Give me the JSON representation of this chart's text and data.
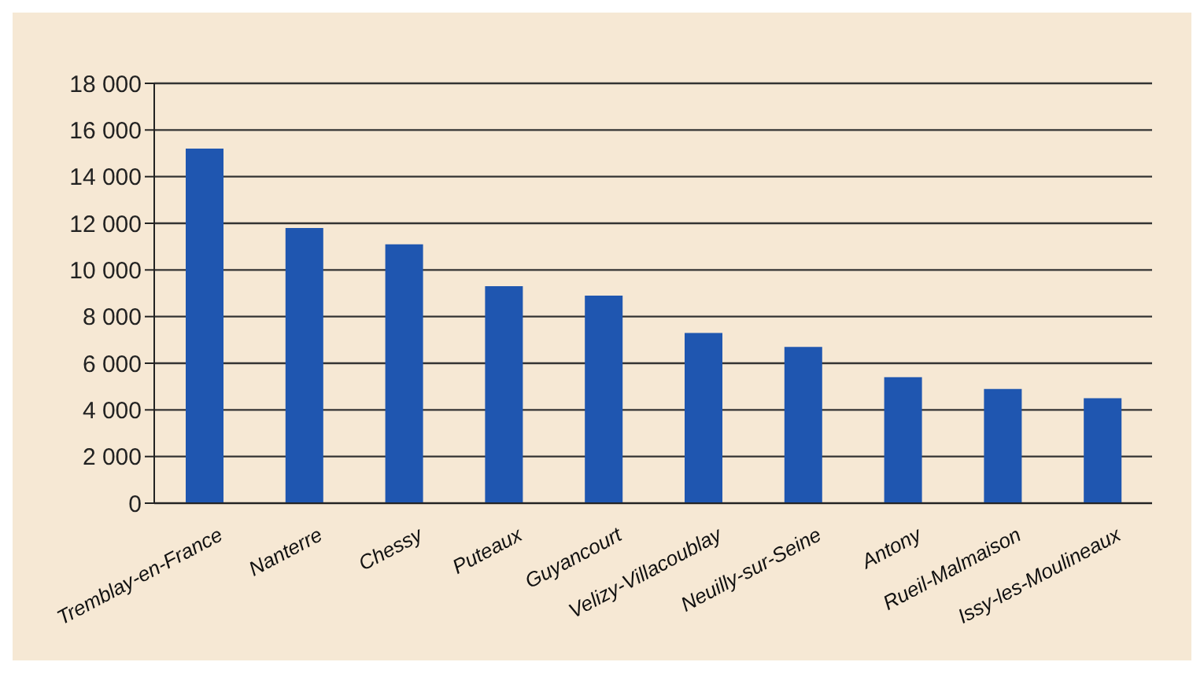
{
  "chart_data": {
    "type": "bar",
    "categories": [
      "Tremblay-en-France",
      "Nanterre",
      "Chessy",
      "Puteaux",
      "Guyancourt",
      "Velizy-Villacoublay",
      "Neuilly-sur-Seine",
      "Antony",
      "Rueil-Malmaison",
      "Issy-les-Moulineaux"
    ],
    "values": [
      15200,
      11800,
      11100,
      9300,
      8900,
      7300,
      6700,
      5400,
      4900,
      4500
    ],
    "color": "#1f56b0",
    "ylim": [
      0,
      18000
    ],
    "yticks": [
      {
        "value": 0,
        "label": "0"
      },
      {
        "value": 2000,
        "label": "2 000"
      },
      {
        "value": 4000,
        "label": "4 000"
      },
      {
        "value": 6000,
        "label": "6 000"
      },
      {
        "value": 8000,
        "label": "8 000"
      },
      {
        "value": 10000,
        "label": "10 000"
      },
      {
        "value": 12000,
        "label": "12 000"
      },
      {
        "value": 14000,
        "label": "14 000"
      },
      {
        "value": 16000,
        "label": "16 000"
      },
      {
        "value": 18000,
        "label": "18 000"
      }
    ],
    "grid": "y"
  }
}
